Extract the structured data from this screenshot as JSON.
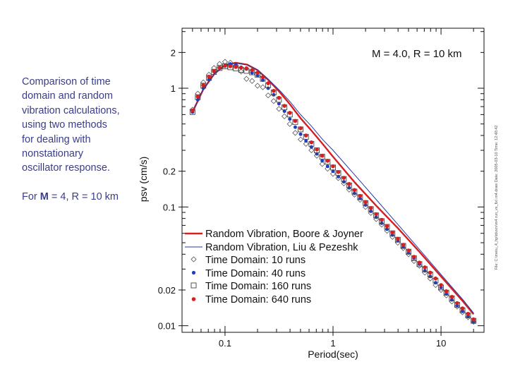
{
  "caption": {
    "text": "Comparison of time domain and random vibration calculations, using two methods for dealing with nonstationary oscillator response.",
    "note_prefix": "For",
    "note_m": "M",
    "note_rest": "= 4, R = 10 km"
  },
  "chart_data": {
    "type": "line",
    "title": "M = 4.0, R = 10 km",
    "xlabel": "Period(sec)",
    "ylabel": "psv (cm/s)",
    "xscale": "log",
    "yscale": "log",
    "xlim": [
      0.04,
      25
    ],
    "ylim": [
      0.0088,
      3.2
    ],
    "x_ticks": [
      {
        "v": 0.1,
        "label": "0.1"
      },
      {
        "v": 1,
        "label": "1"
      },
      {
        "v": 10,
        "label": "10"
      }
    ],
    "y_ticks": [
      {
        "v": 0.01,
        "label": "0.01"
      },
      {
        "v": 0.02,
        "label": "0.02"
      },
      {
        "v": 0.1,
        "label": "0.1"
      },
      {
        "v": 0.2,
        "label": "0.2"
      },
      {
        "v": 1,
        "label": "1"
      },
      {
        "v": 2,
        "label": "2"
      }
    ],
    "side_text": "File: C:\\metu_4_hp\\tdvsrv\\m4 run_vs_fix\\ m4.draw Date: 2005-03-10 Time: 12:48:42",
    "series": [
      {
        "name": "Random Vibration, Boore & Joyner",
        "style": "line",
        "color": "#d42020",
        "x": [
          0.05,
          0.063,
          0.08,
          0.1,
          0.125,
          0.16,
          0.2,
          0.25,
          0.32,
          0.4,
          0.5,
          0.63,
          0.8,
          1.0,
          1.6,
          2.5,
          4.0,
          6.3,
          10,
          16,
          20
        ],
        "y": [
          0.63,
          0.98,
          1.33,
          1.56,
          1.64,
          1.58,
          1.42,
          1.18,
          0.93,
          0.73,
          0.56,
          0.44,
          0.34,
          0.265,
          0.16,
          0.103,
          0.066,
          0.042,
          0.026,
          0.016,
          0.0125
        ]
      },
      {
        "name": "Random Vibration, Liu & Pezeshk",
        "style": "line",
        "color": "#2a3aa8",
        "x": [
          0.05,
          0.063,
          0.08,
          0.1,
          0.125,
          0.16,
          0.2,
          0.25,
          0.32,
          0.4,
          0.5,
          0.63,
          0.8,
          1.0,
          1.6,
          2.5,
          4.0,
          6.3,
          10,
          16,
          20
        ],
        "y": [
          0.63,
          0.98,
          1.32,
          1.55,
          1.63,
          1.57,
          1.43,
          1.2,
          0.96,
          0.77,
          0.6,
          0.48,
          0.37,
          0.3,
          0.185,
          0.116,
          0.071,
          0.044,
          0.027,
          0.0165,
          0.0128
        ]
      },
      {
        "name": "Time Domain: 10 runs",
        "style": "marker",
        "marker": "diamond",
        "color": "#555555",
        "x": [
          0.05,
          0.056,
          0.063,
          0.071,
          0.079,
          0.089,
          0.1,
          0.112,
          0.126,
          0.141,
          0.158,
          0.178,
          0.2,
          0.224,
          0.251,
          0.282,
          0.316,
          0.355,
          0.398,
          0.447,
          0.501,
          0.562,
          0.631,
          0.708,
          0.794,
          0.891,
          1.0,
          1.12,
          1.26,
          1.41,
          1.58,
          1.78,
          2.0,
          2.24,
          2.51,
          2.82,
          3.16,
          3.55,
          3.98,
          4.47,
          5.01,
          5.62,
          6.31,
          7.08,
          7.94,
          8.91,
          10.0,
          11.2,
          12.6,
          14.1,
          15.8,
          17.8,
          20.0
        ],
        "y": [
          0.66,
          0.9,
          1.12,
          1.3,
          1.48,
          1.6,
          1.67,
          1.64,
          1.55,
          1.38,
          1.2,
          1.15,
          1.05,
          1.02,
          0.87,
          0.78,
          0.67,
          0.58,
          0.5,
          0.42,
          0.37,
          0.34,
          0.3,
          0.27,
          0.23,
          0.21,
          0.19,
          0.175,
          0.158,
          0.14,
          0.127,
          0.115,
          0.1,
          0.089,
          0.079,
          0.071,
          0.063,
          0.056,
          0.05,
          0.045,
          0.04,
          0.035,
          0.032,
          0.028,
          0.025,
          0.022,
          0.02,
          0.018,
          0.016,
          0.0145,
          0.013,
          0.0118,
          0.0108
        ]
      },
      {
        "name": "Time Domain: 40 runs",
        "style": "marker",
        "marker": "dot",
        "color": "#1f3fbf",
        "x": [
          0.05,
          0.056,
          0.063,
          0.071,
          0.079,
          0.089,
          0.1,
          0.112,
          0.126,
          0.141,
          0.158,
          0.178,
          0.2,
          0.224,
          0.251,
          0.282,
          0.316,
          0.355,
          0.398,
          0.447,
          0.501,
          0.562,
          0.631,
          0.708,
          0.794,
          0.891,
          1.0,
          1.12,
          1.26,
          1.41,
          1.58,
          1.78,
          2.0,
          2.24,
          2.51,
          2.82,
          3.16,
          3.55,
          3.98,
          4.47,
          5.01,
          5.62,
          6.31,
          7.08,
          7.94,
          8.91,
          10.0,
          11.2,
          12.6,
          14.1,
          15.8,
          17.8,
          20.0
        ],
        "y": [
          0.63,
          0.8,
          1.0,
          1.18,
          1.38,
          1.48,
          1.55,
          1.6,
          1.58,
          1.5,
          1.45,
          1.35,
          1.28,
          1.17,
          1.0,
          0.88,
          0.74,
          0.64,
          0.55,
          0.47,
          0.41,
          0.36,
          0.32,
          0.28,
          0.245,
          0.22,
          0.2,
          0.18,
          0.163,
          0.145,
          0.13,
          0.118,
          0.104,
          0.092,
          0.082,
          0.073,
          0.065,
          0.058,
          0.052,
          0.046,
          0.041,
          0.037,
          0.033,
          0.029,
          0.026,
          0.023,
          0.021,
          0.0185,
          0.0165,
          0.0148,
          0.0133,
          0.012,
          0.0108
        ]
      },
      {
        "name": "Time Domain: 160 runs",
        "style": "marker",
        "marker": "square",
        "color": "#444444",
        "x": [
          0.05,
          0.056,
          0.063,
          0.071,
          0.079,
          0.089,
          0.1,
          0.112,
          0.126,
          0.141,
          0.158,
          0.178,
          0.2,
          0.224,
          0.251,
          0.282,
          0.316,
          0.355,
          0.398,
          0.447,
          0.501,
          0.562,
          0.631,
          0.708,
          0.794,
          0.891,
          1.0,
          1.12,
          1.26,
          1.41,
          1.58,
          1.78,
          2.0,
          2.24,
          2.51,
          2.82,
          3.16,
          3.55,
          3.98,
          4.47,
          5.01,
          5.62,
          6.31,
          7.08,
          7.94,
          8.91,
          10.0,
          11.2,
          12.6,
          14.1,
          15.8,
          17.8,
          20.0
        ],
        "y": [
          0.63,
          0.84,
          1.05,
          1.22,
          1.37,
          1.48,
          1.53,
          1.5,
          1.47,
          1.43,
          1.4,
          1.36,
          1.3,
          1.2,
          1.06,
          0.92,
          0.8,
          0.69,
          0.6,
          0.52,
          0.45,
          0.39,
          0.34,
          0.3,
          0.265,
          0.24,
          0.215,
          0.193,
          0.172,
          0.152,
          0.135,
          0.121,
          0.108,
          0.096,
          0.085,
          0.076,
          0.068,
          0.06,
          0.053,
          0.047,
          0.042,
          0.037,
          0.033,
          0.03,
          0.027,
          0.024,
          0.021,
          0.019,
          0.017,
          0.015,
          0.0135,
          0.0122,
          0.011
        ]
      },
      {
        "name": "Time Domain: 640 runs",
        "style": "marker",
        "marker": "dot",
        "color": "#d42020",
        "x": [
          0.05,
          0.056,
          0.063,
          0.071,
          0.079,
          0.089,
          0.1,
          0.112,
          0.126,
          0.141,
          0.158,
          0.178,
          0.2,
          0.224,
          0.251,
          0.282,
          0.316,
          0.355,
          0.398,
          0.447,
          0.501,
          0.562,
          0.631,
          0.708,
          0.794,
          0.891,
          1.0,
          1.12,
          1.26,
          1.41,
          1.58,
          1.78,
          2.0,
          2.24,
          2.51,
          2.82,
          3.16,
          3.55,
          3.98,
          4.47,
          5.01,
          5.62,
          6.31,
          7.08,
          7.94,
          8.91,
          10.0,
          11.2,
          12.6,
          14.1,
          15.8,
          17.8,
          20.0
        ],
        "y": [
          0.65,
          0.85,
          1.06,
          1.25,
          1.4,
          1.49,
          1.54,
          1.53,
          1.51,
          1.49,
          1.47,
          1.42,
          1.35,
          1.24,
          1.1,
          0.95,
          0.83,
          0.71,
          0.62,
          0.53,
          0.46,
          0.4,
          0.35,
          0.305,
          0.27,
          0.245,
          0.22,
          0.197,
          0.176,
          0.156,
          0.139,
          0.124,
          0.11,
          0.098,
          0.087,
          0.078,
          0.069,
          0.061,
          0.054,
          0.048,
          0.043,
          0.038,
          0.034,
          0.031,
          0.028,
          0.025,
          0.022,
          0.0195,
          0.0175,
          0.0155,
          0.014,
          0.0126,
          0.0113
        ]
      }
    ]
  }
}
